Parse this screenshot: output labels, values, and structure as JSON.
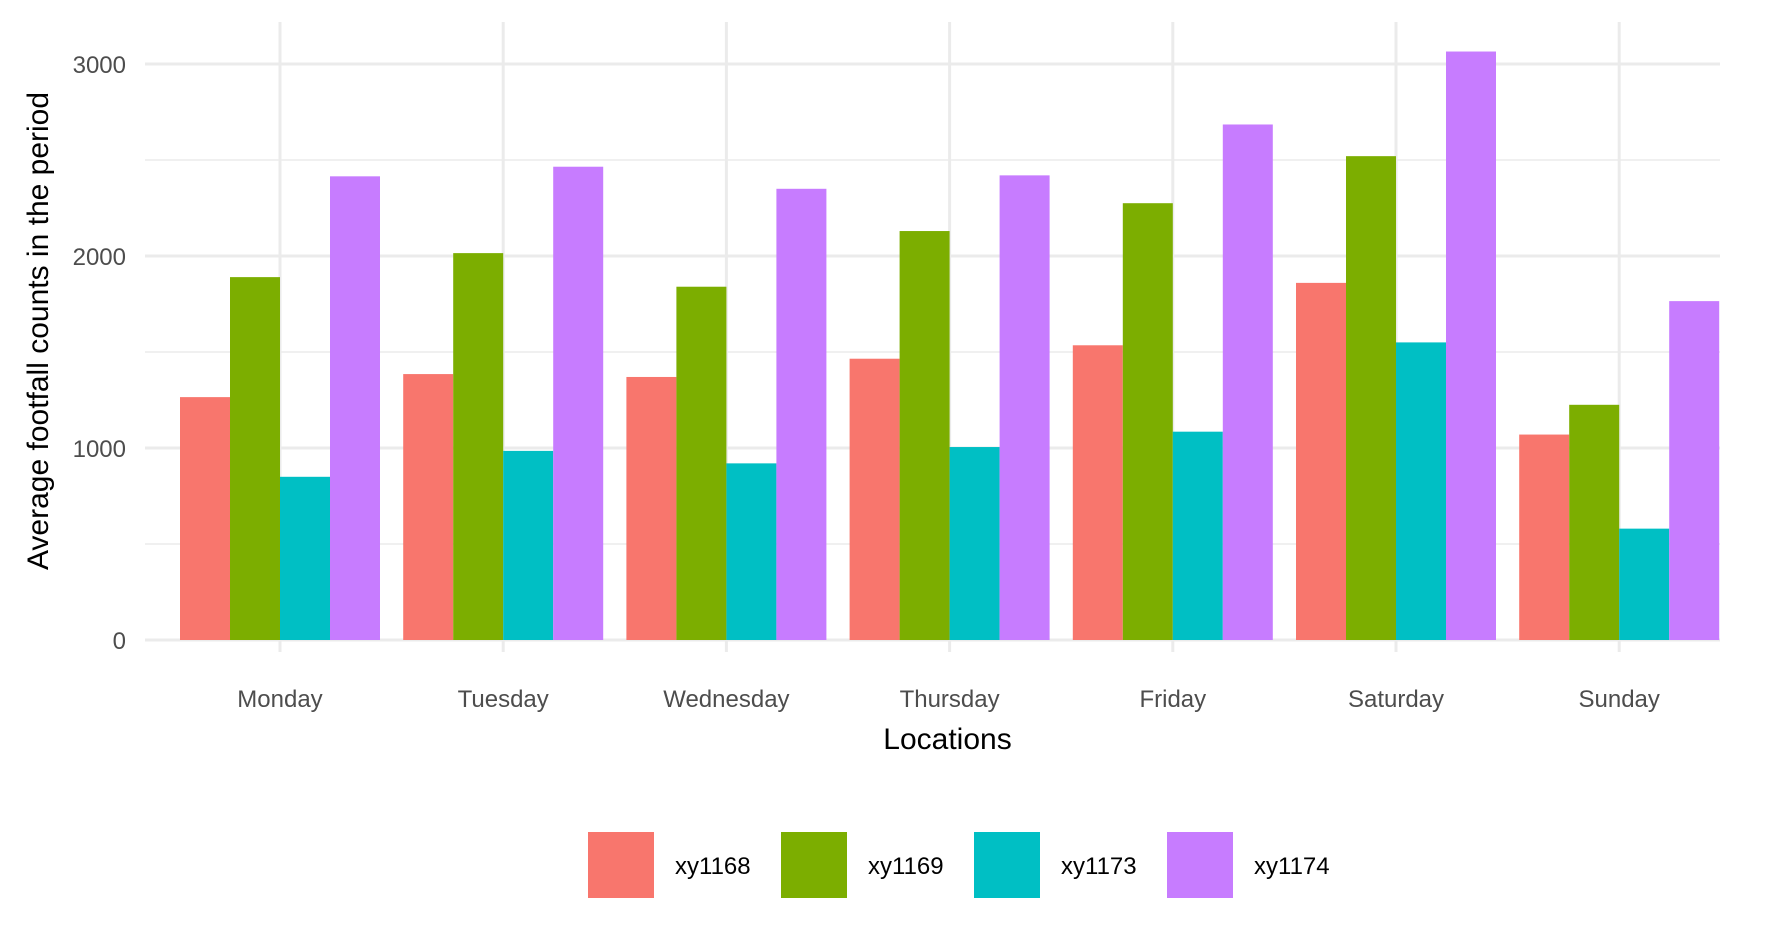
{
  "chart_data": {
    "type": "bar",
    "xlabel": "Locations",
    "ylabel": "Average footfall counts in the period",
    "categories": [
      "Monday",
      "Tuesday",
      "Wednesday",
      "Thursday",
      "Friday",
      "Saturday",
      "Sunday"
    ],
    "series": [
      {
        "name": "xy1168",
        "color": "#F8766D",
        "values": [
          1265,
          1385,
          1370,
          1465,
          1535,
          1860,
          1070
        ]
      },
      {
        "name": "xy1169",
        "color": "#7CAE00",
        "values": [
          1890,
          2015,
          1840,
          2130,
          2275,
          2520,
          1225
        ]
      },
      {
        "name": "xy1173",
        "color": "#00BFC4",
        "values": [
          850,
          985,
          920,
          1005,
          1085,
          1550,
          580
        ]
      },
      {
        "name": "xy1174",
        "color": "#C77CFF",
        "values": [
          2415,
          2465,
          2350,
          2420,
          2685,
          3065,
          1765
        ]
      }
    ],
    "ylim": [
      0,
      3150
    ],
    "yticks": [
      0,
      1000,
      2000,
      3000
    ],
    "grid": true,
    "legend_position": "bottom"
  }
}
